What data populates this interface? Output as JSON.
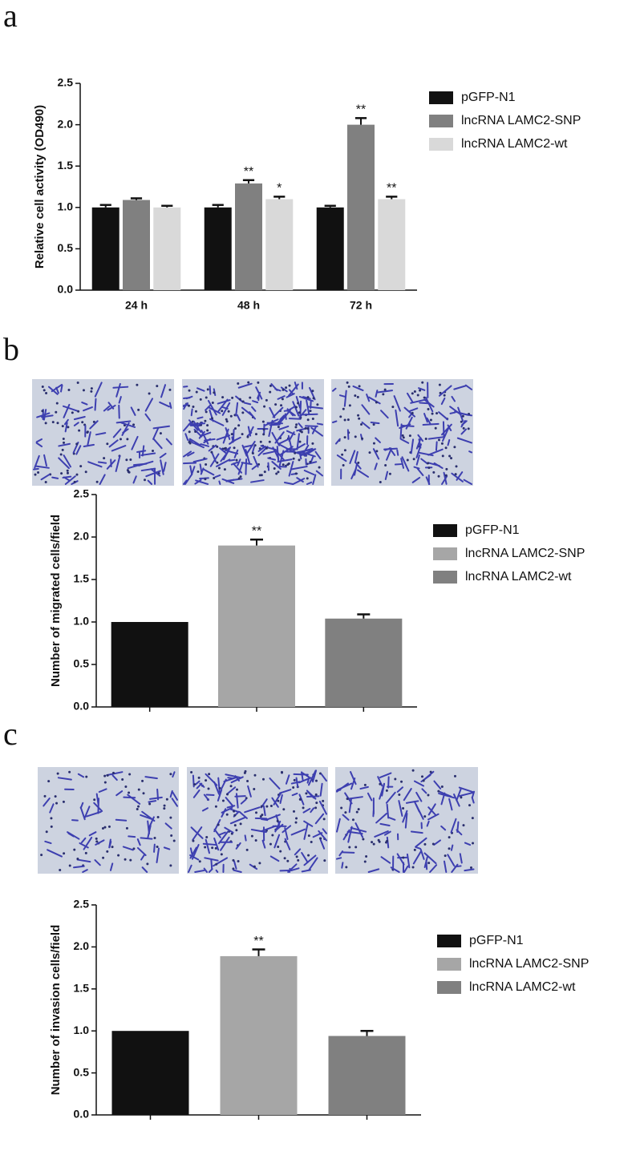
{
  "chart_data": [
    {
      "type": "bar",
      "panel": "a",
      "ylabel": "Relative cell activity (OD490)",
      "categories": [
        "24 h",
        "48 h",
        "72 h"
      ],
      "series": [
        {
          "name": "pGFP-N1",
          "color": "#111111",
          "values": [
            1.0,
            1.0,
            1.0
          ],
          "errors": [
            0.03,
            0.03,
            0.02
          ],
          "annotations": [
            null,
            null,
            null
          ]
        },
        {
          "name": "lncRNA LAMC2-SNP",
          "color": "#808080",
          "values": [
            1.09,
            1.29,
            2.0
          ],
          "errors": [
            0.02,
            0.04,
            0.08
          ],
          "annotations": [
            null,
            "**",
            "**"
          ]
        },
        {
          "name": "lncRNA LAMC2-wt",
          "color": "#d9d9d9",
          "values": [
            1.0,
            1.1,
            1.1
          ],
          "errors": [
            0.02,
            0.03,
            0.03
          ],
          "annotations": [
            null,
            "*",
            "**"
          ]
        }
      ],
      "ylim": [
        0,
        2.5
      ],
      "yticks": [
        {
          "value": 0,
          "label": "0.0"
        },
        0.5,
        {
          "value": 1,
          "label": "1.0"
        },
        1.5,
        {
          "value": 2,
          "label": "2.0"
        },
        2.5
      ]
    },
    {
      "type": "bar",
      "panel": "b",
      "ylabel": "Number of migrated cells/field",
      "categories": [
        "pGFP-N1",
        "lncRNA LAMC2-SNP",
        "lncRNA LAMC2-wt"
      ],
      "colors": [
        "#111111",
        "#a6a6a6",
        "#808080"
      ],
      "values": [
        1.0,
        1.9,
        1.04
      ],
      "errors": [
        0,
        0.07,
        0.05
      ],
      "annotations": [
        null,
        "**",
        null
      ],
      "ylim": [
        0,
        2.5
      ],
      "yticks": [
        {
          "value": 0,
          "label": "0.0"
        },
        0.5,
        {
          "value": 1,
          "label": "1.0"
        },
        1.5,
        {
          "value": 2,
          "label": "2.0"
        },
        2.5
      ]
    },
    {
      "type": "bar",
      "panel": "c",
      "ylabel": "Number of invasion cells/field",
      "categories": [
        "pGFP-N1",
        "lncRNA LAMC2-SNP",
        "lncRNA LAMC2-wt"
      ],
      "colors": [
        "#111111",
        "#a6a6a6",
        "#808080"
      ],
      "values": [
        1.0,
        1.89,
        0.94
      ],
      "errors": [
        0,
        0.08,
        0.06
      ],
      "annotations": [
        null,
        "**",
        null
      ],
      "ylim": [
        0,
        2.5
      ],
      "yticks": [
        {
          "value": 0,
          "label": "0.0"
        },
        0.5,
        {
          "value": 1,
          "label": "1.0"
        },
        1.5,
        {
          "value": 2,
          "label": "2.0"
        },
        2.5
      ]
    }
  ]
}
